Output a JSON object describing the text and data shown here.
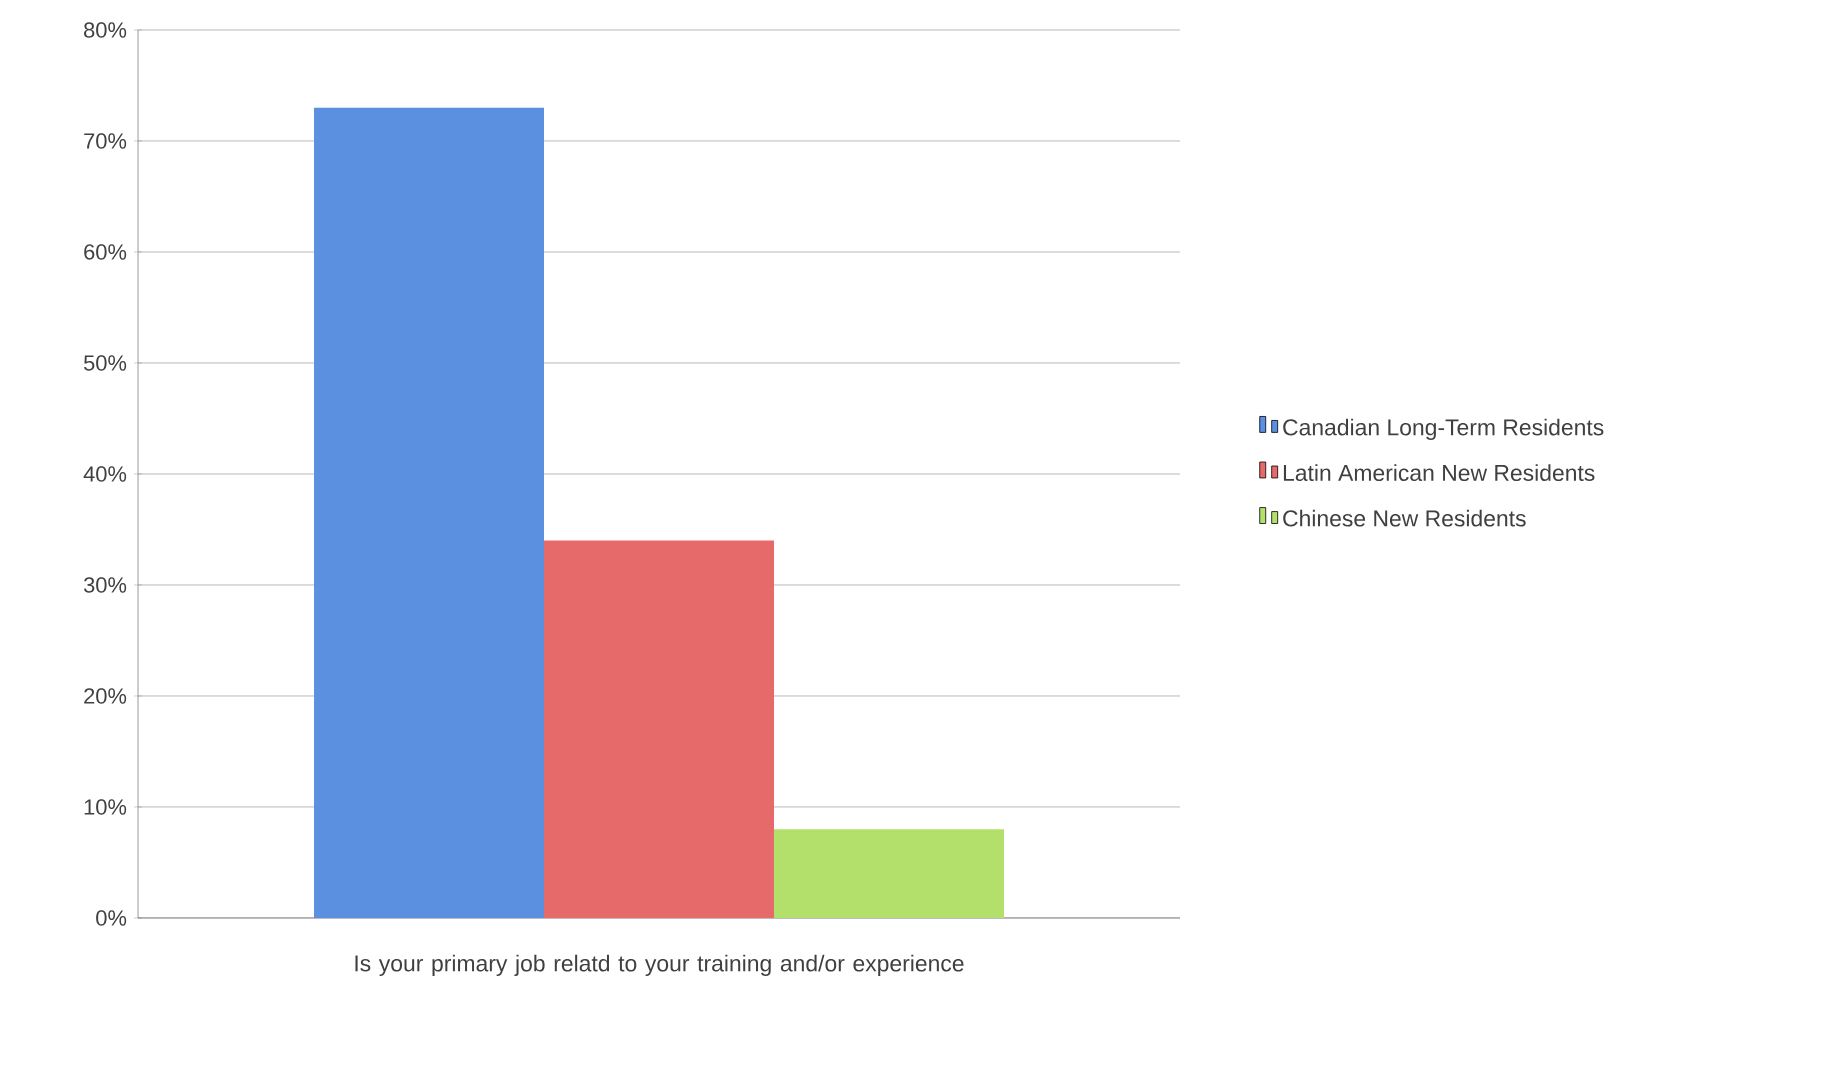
{
  "chart_data": {
    "type": "bar",
    "xlabel": "Is your primary job relatd to your training and/or experience",
    "categories": [
      null
    ],
    "series": [
      {
        "name": "Canadian Long-Term Residents",
        "color": "#5b8fe0",
        "values": [
          73
        ]
      },
      {
        "name": "Latin American New Residents",
        "color": "#e66a6a",
        "values": [
          34
        ]
      },
      {
        "name": "Chinese New Residents",
        "color": "#b3e06a",
        "values": [
          8
        ]
      }
    ],
    "ylim": [
      0,
      80
    ],
    "yticks": [
      {
        "value": 0,
        "label": "0%"
      },
      {
        "value": 10,
        "label": "10%"
      },
      {
        "value": 20,
        "label": "20%"
      },
      {
        "value": 30,
        "label": "30%"
      },
      {
        "value": 40,
        "label": "40%"
      },
      {
        "value": 50,
        "label": "50%"
      },
      {
        "value": 60,
        "label": "60%"
      },
      {
        "value": 70,
        "label": "70%"
      },
      {
        "value": 80,
        "label": "80%"
      }
    ],
    "grid": "y",
    "legend": "right"
  }
}
